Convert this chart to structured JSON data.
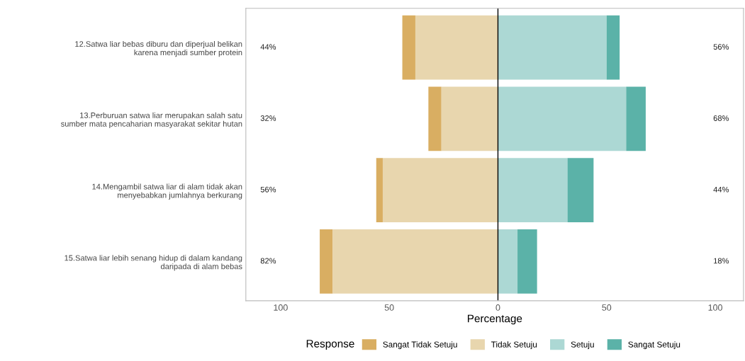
{
  "chart_data": {
    "type": "bar",
    "orientation": "horizontal",
    "xlabel": "Percentage",
    "legend_title": "Response",
    "legend": "bottom",
    "grid": false,
    "categories": [
      "12.Satwa liar bebas diburu dan diperjual belikan\nkarena menjadi sumber protein",
      "13.Perburuan satwa liar merupakan salah satu\nsumber mata pencaharian masyarakat sekitar hutan",
      "14.Mengambil satwa liar di alam tidak akan\nmenyebabkan jumlahnya berkurang",
      "15.Satwa liar lebih senang hidup di dalam kandang\ndaripada di alam bebas"
    ],
    "series": [
      {
        "name": "Sangat Tidak Setuju",
        "color": "#d9ae62",
        "values": [
          6,
          6,
          3,
          6
        ],
        "base": [
          -44,
          -32,
          -56,
          -82
        ]
      },
      {
        "name": "Tidak Setuju",
        "color": "#e8d6ae",
        "values": [
          38,
          26,
          53,
          76
        ],
        "base": [
          -38,
          -26,
          -53,
          -76
        ]
      },
      {
        "name": "Setuju",
        "color": "#acd8d4",
        "values": [
          50,
          59,
          32,
          9
        ],
        "base": [
          0,
          0,
          0,
          0
        ]
      },
      {
        "name": "Sangat Setuju",
        "color": "#5bb2a8",
        "values": [
          6,
          9,
          12,
          9
        ],
        "base": [
          50,
          59,
          32,
          9
        ]
      }
    ],
    "xlim": [
      -116,
      113
    ],
    "xticks": [
      {
        "value": -100,
        "label": "100"
      },
      {
        "value": -50,
        "label": "50"
      },
      0,
      50,
      100
    ],
    "ref_lines": [
      {
        "axis": "x",
        "value": 0,
        "color": "#000000"
      }
    ],
    "annotations": [
      "44%",
      "56%",
      "32%",
      "68%",
      "56%",
      "44%",
      "82%",
      "18%"
    ]
  }
}
